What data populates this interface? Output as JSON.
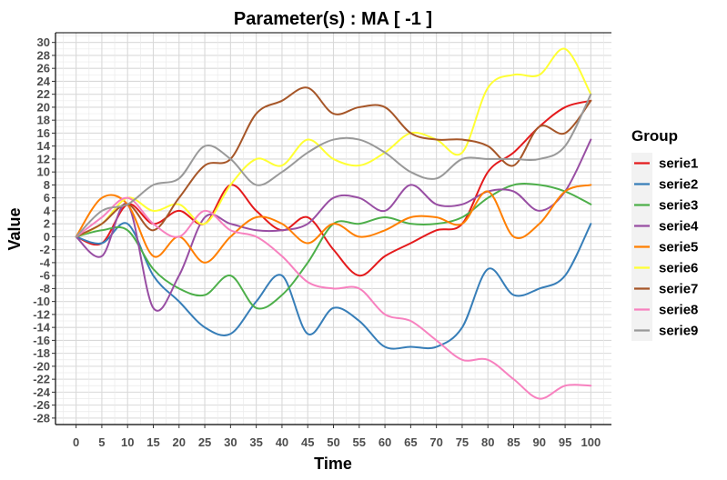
{
  "chart_data": {
    "type": "line",
    "title": "Parameter(s) :  MA [ -1 ]",
    "xlabel": "Time",
    "ylabel": "Value",
    "xlim": [
      -4,
      104
    ],
    "ylim": [
      -29,
      31.5
    ],
    "x_ticks": [
      0,
      5,
      10,
      15,
      20,
      25,
      30,
      35,
      40,
      45,
      50,
      55,
      60,
      65,
      70,
      75,
      80,
      85,
      90,
      95,
      100
    ],
    "y_ticks": [
      -28,
      -26,
      -24,
      -22,
      -20,
      -18,
      -16,
      -14,
      -12,
      -10,
      -8,
      -6,
      -4,
      -2,
      0,
      2,
      4,
      6,
      8,
      10,
      12,
      14,
      16,
      18,
      20,
      22,
      24,
      26,
      28,
      30
    ],
    "grid": true,
    "legend": {
      "title": "Group",
      "placement": "right"
    },
    "x": [
      0,
      5,
      10,
      15,
      20,
      25,
      30,
      35,
      40,
      45,
      50,
      55,
      60,
      65,
      70,
      75,
      80,
      85,
      90,
      95,
      100
    ],
    "series": [
      {
        "name": "serie1",
        "color": "#E41A1C",
        "values": [
          0,
          -1,
          5,
          2,
          4,
          2,
          8,
          4,
          1,
          3,
          -2,
          -6,
          -3,
          -1,
          1,
          2,
          10,
          13,
          17,
          20,
          21
        ]
      },
      {
        "name": "serie2",
        "color": "#377EB8",
        "values": [
          0,
          -1,
          2,
          -6,
          -10,
          -14,
          -15,
          -10,
          -6,
          -15,
          -11,
          -13,
          -17,
          -17,
          -17,
          -14,
          -5,
          -9,
          -8,
          -6,
          2
        ]
      },
      {
        "name": "serie3",
        "color": "#4DAF4A",
        "values": [
          0,
          1,
          1,
          -5,
          -8,
          -9,
          -6,
          -11,
          -9,
          -4,
          2,
          2,
          3,
          2,
          2,
          3,
          6,
          8,
          8,
          7,
          5
        ]
      },
      {
        "name": "serie4",
        "color": "#984EA3",
        "values": [
          0,
          -3,
          5,
          -11,
          -6,
          3,
          2,
          1,
          1,
          2,
          6,
          6,
          4,
          8,
          5,
          5,
          7,
          7,
          4,
          7,
          15
        ]
      },
      {
        "name": "serie5",
        "color": "#FF7F00",
        "values": [
          0,
          6,
          5,
          -3,
          0,
          -4,
          0,
          3,
          2,
          -1,
          2,
          0,
          1,
          3,
          3,
          2,
          7,
          0,
          2,
          7,
          8
        ]
      },
      {
        "name": "serie6",
        "color": "#FFFF33",
        "values": [
          0,
          2,
          6,
          4,
          5,
          2,
          8,
          12,
          11,
          15,
          12,
          11,
          13,
          16,
          15,
          13,
          23,
          25,
          25,
          29,
          22
        ]
      },
      {
        "name": "serie7",
        "color": "#A65628",
        "values": [
          0,
          2,
          5,
          1,
          6,
          11,
          12,
          19,
          21,
          23,
          19,
          20,
          20,
          16,
          15,
          15,
          14,
          11,
          17,
          16,
          21
        ]
      },
      {
        "name": "serie8",
        "color": "#F781BF",
        "values": [
          0,
          3,
          6,
          2,
          0,
          4,
          1,
          0,
          -3,
          -7,
          -8,
          -8,
          -12,
          -13,
          -16,
          -19,
          -19,
          -22,
          -25,
          -23,
          -23
        ]
      },
      {
        "name": "serie9",
        "color": "#999999",
        "values": [
          0,
          4,
          5,
          8,
          9,
          14,
          12,
          8,
          10,
          13,
          15,
          15,
          13,
          10,
          9,
          12,
          12,
          12,
          12,
          14,
          22
        ]
      }
    ]
  }
}
